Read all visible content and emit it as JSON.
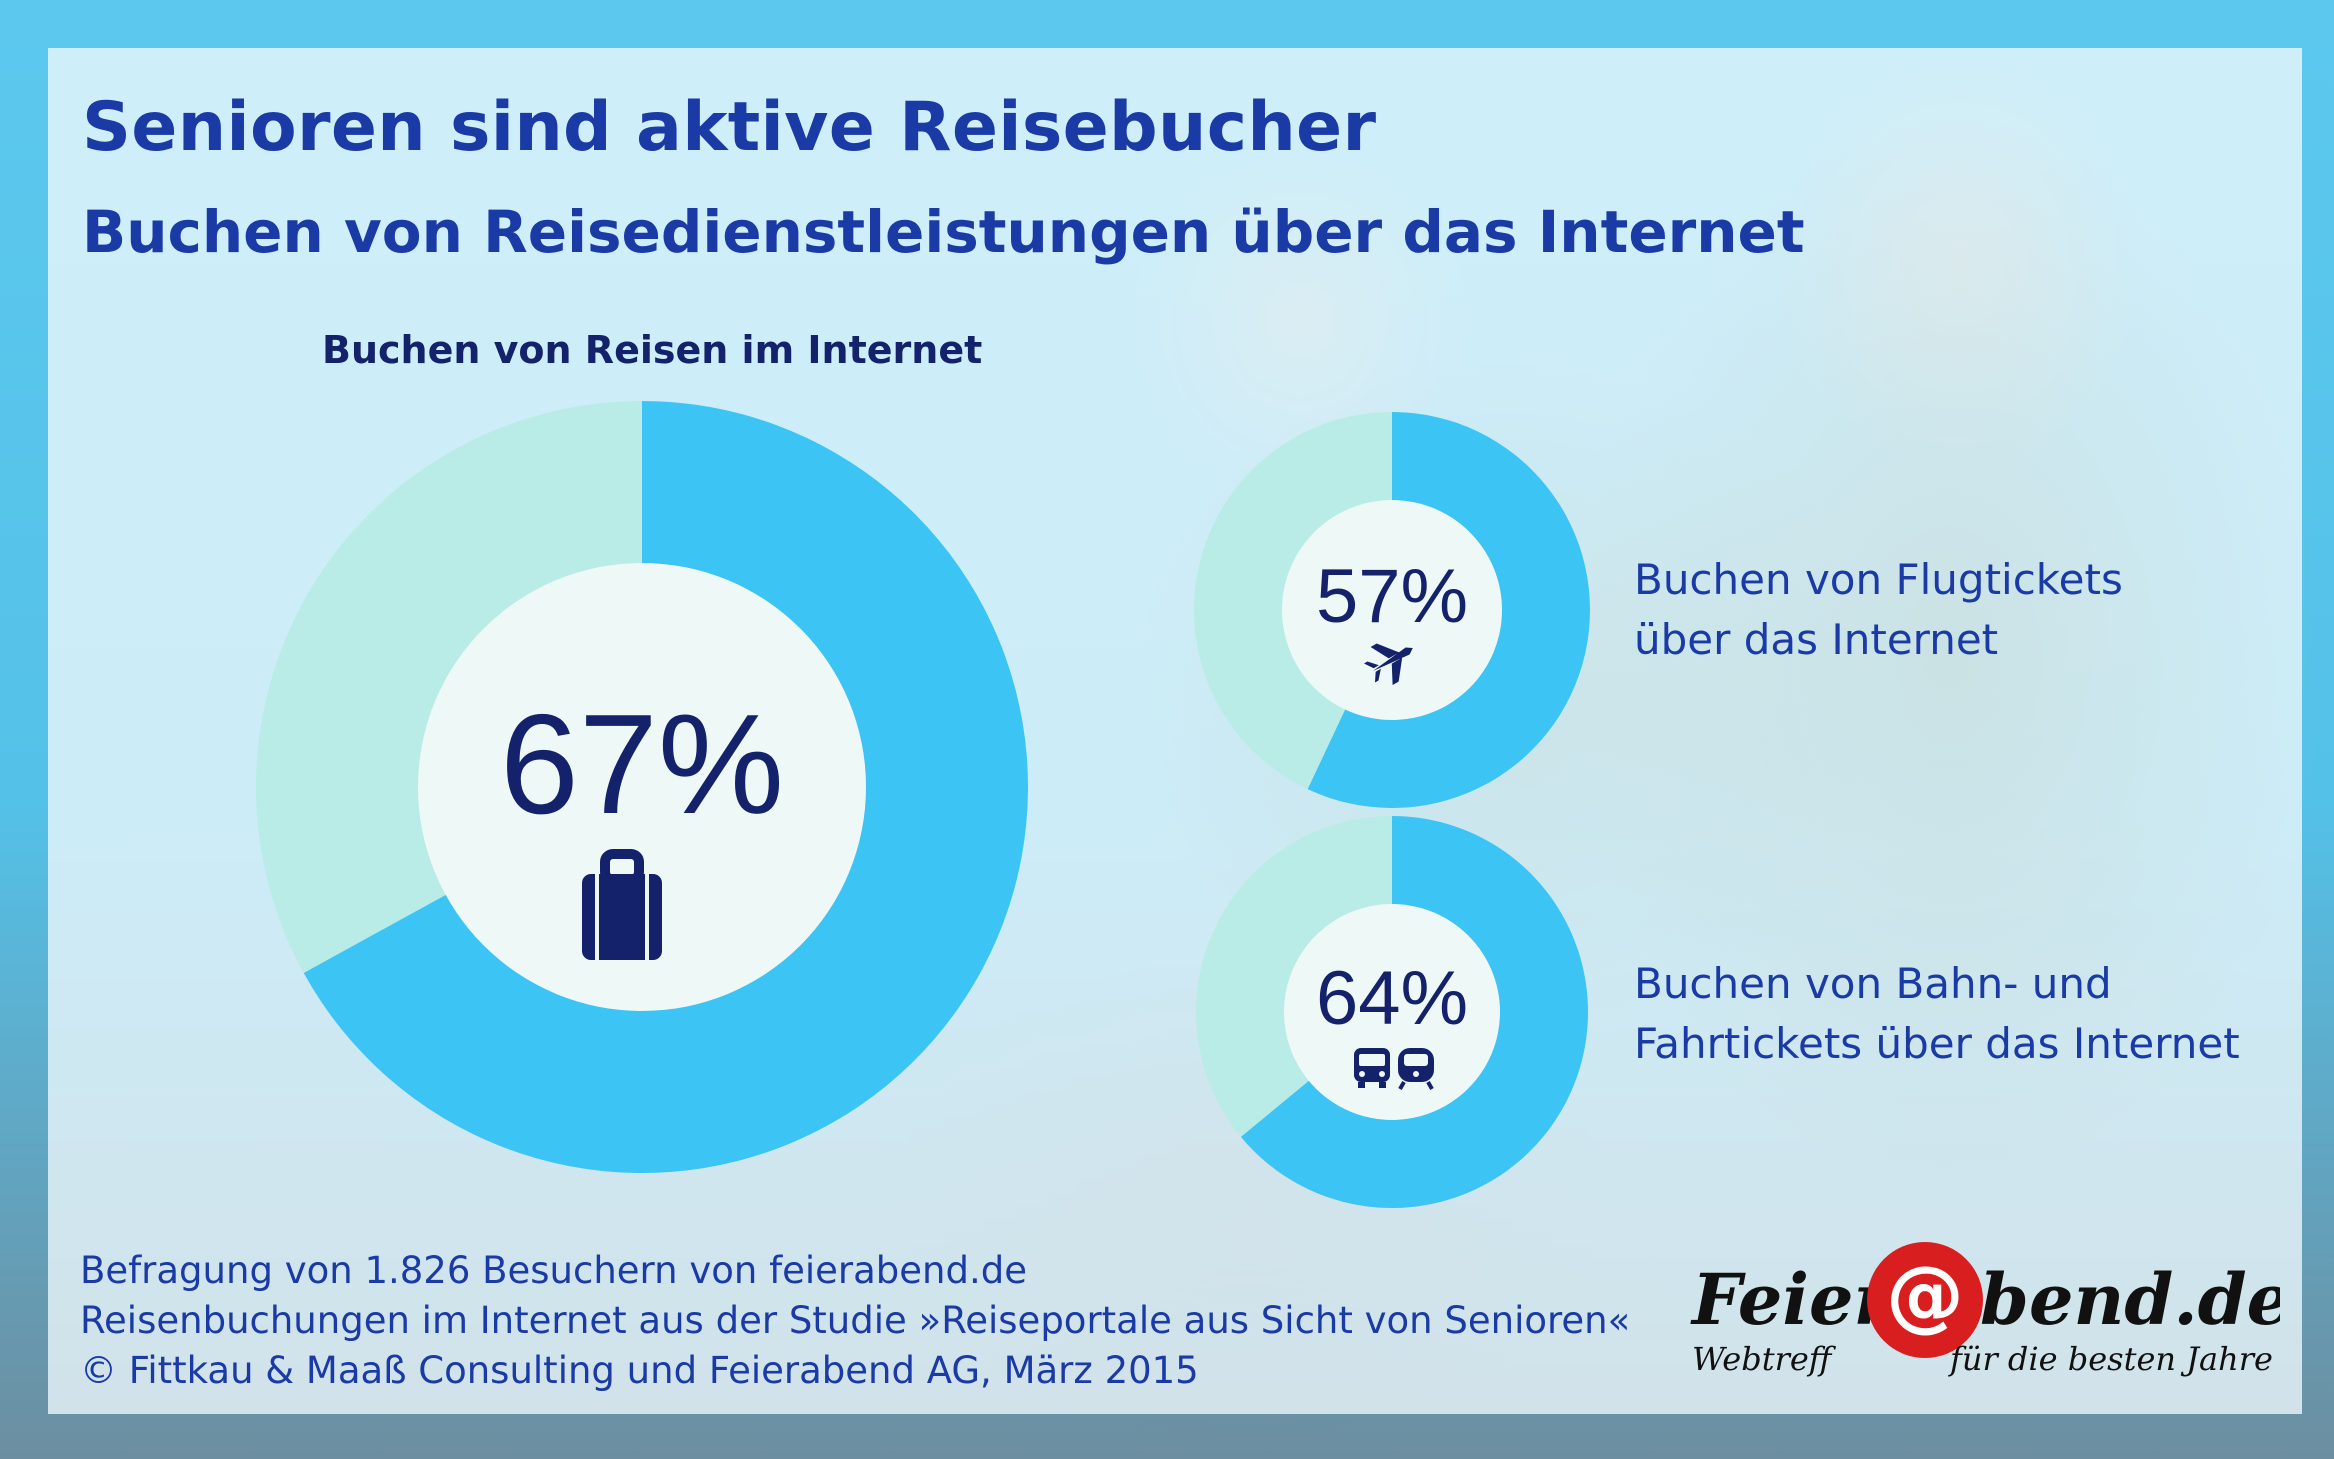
{
  "title": "Senioren sind aktive Reisebucher",
  "subtitle": "Buchen von Reisedienstleistungen über das Internet",
  "chart_heading": "Buchen von Reisen im Internet",
  "colors": {
    "accent": "#3cc4f4",
    "track": "#b9ece6",
    "center": "#eef8f6",
    "text_dark": "#13226a",
    "text_blue": "#1a3aa6",
    "logo_red": "#d81e1e"
  },
  "chart_data": [
    {
      "type": "pie",
      "variant": "donut",
      "label": "Buchen von Reisen im Internet",
      "values": [
        67,
        33
      ],
      "display": "67%",
      "icon": "suitcase-icon"
    },
    {
      "type": "pie",
      "variant": "donut",
      "label_lines": [
        "Buchen von Flugtickets",
        "über das Internet"
      ],
      "values": [
        57,
        43
      ],
      "display": "57%",
      "icon": "airplane-icon"
    },
    {
      "type": "pie",
      "variant": "donut",
      "label_lines": [
        "Buchen von Bahn- und",
        "Fahrtickets über das Internet"
      ],
      "values": [
        64,
        36
      ],
      "display": "64%",
      "icon": "bus-train-icon"
    }
  ],
  "footer": {
    "line1": "Befragung von 1.826 Besuchern von feierabend.de",
    "line2": "Reisenbuchungen im Internet aus der Studie »Reiseportale aus Sicht von Senioren«",
    "line3": "© Fittkau & Maaß Consulting und Feierabend AG, März 2015"
  },
  "logo": {
    "word_left": "Feier",
    "at": "@",
    "word_right": "bend.de",
    "tagline_left": "Webtreff",
    "tagline_right": "für die besten Jahre"
  }
}
